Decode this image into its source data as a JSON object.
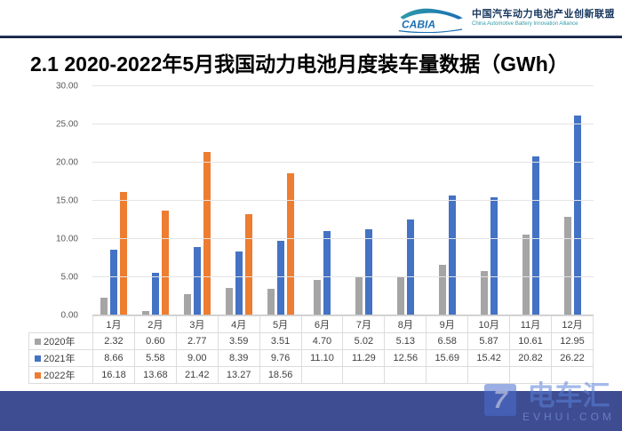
{
  "header": {
    "logo_text": "CABIA",
    "org_name_cn": "中国汽车动力电池产业创新联盟",
    "org_name_en": "China Automotive Battery Innovation Alliance"
  },
  "title": "2.1 2020-2022年5月我国动力电池月度装车量数据（GWh）",
  "chart_data": {
    "type": "bar",
    "title": "2020-2022年5月我国动力电池月度装车量数据（GWh）",
    "categories": [
      "1月",
      "2月",
      "3月",
      "4月",
      "5月",
      "6月",
      "7月",
      "8月",
      "9月",
      "10月",
      "11月",
      "12月"
    ],
    "series": [
      {
        "name": "2020年",
        "color": "#A5A5A5",
        "values": [
          2.32,
          0.6,
          2.77,
          3.59,
          3.51,
          4.7,
          5.02,
          5.13,
          6.58,
          5.87,
          10.61,
          12.95
        ]
      },
      {
        "name": "2021年",
        "color": "#4472C4",
        "values": [
          8.66,
          5.58,
          9.0,
          8.39,
          9.76,
          11.1,
          11.29,
          12.56,
          15.69,
          15.42,
          20.82,
          26.22
        ]
      },
      {
        "name": "2022年",
        "color": "#ED7D31",
        "values": [
          16.18,
          13.68,
          21.42,
          13.27,
          18.56
        ]
      }
    ],
    "xlabel": "",
    "ylabel": "",
    "ylim": [
      0,
      30
    ],
    "yticks": [
      30,
      25,
      20,
      15,
      10,
      5,
      0
    ],
    "ytick_format": "0.00",
    "grid": true,
    "legend_position": "data-table-left",
    "data_table_shown": true
  },
  "watermark": {
    "logo_glyph": "7",
    "name_cn": "电车汇",
    "site": "EVHUI.COM"
  },
  "colors": {
    "series_2020": "#A5A5A5",
    "series_2021": "#4472C4",
    "series_2022": "#ED7D31",
    "header_divider": "#0c1531",
    "bottom_bar": "#3e4c92",
    "brand_cn_text": "#17365d",
    "brand_en_text": "#2e9aa8"
  }
}
